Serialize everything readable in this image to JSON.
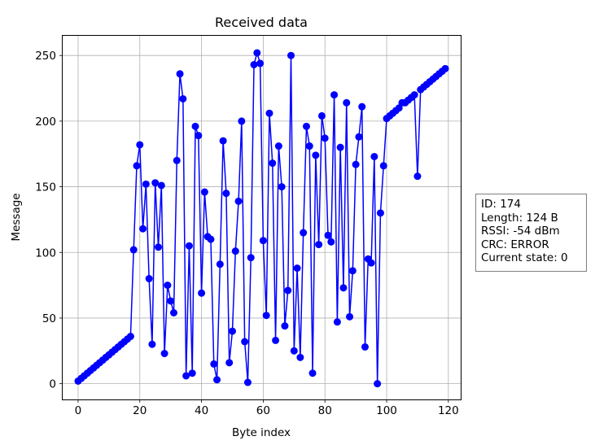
{
  "chart_data": {
    "type": "line",
    "title": "Received data",
    "xlabel": "Byte index",
    "ylabel": "Message",
    "xlim": [
      -5,
      124
    ],
    "ylim": [
      -12,
      265
    ],
    "xticks": [
      0,
      20,
      40,
      60,
      80,
      100,
      120
    ],
    "yticks": [
      0,
      50,
      100,
      150,
      200,
      250
    ],
    "grid": true,
    "marker": "circle",
    "line_color": "#0000ff",
    "marker_color": "#0000ff",
    "series": [
      {
        "x": [
          0,
          1,
          2,
          3,
          4,
          5,
          6,
          7,
          8,
          9,
          10,
          11,
          12,
          13,
          14,
          15,
          16,
          17,
          18,
          19,
          20,
          21,
          22,
          23,
          24,
          25,
          26,
          27,
          28,
          29,
          30,
          31,
          32,
          33,
          34,
          35,
          36,
          37,
          38,
          39,
          40,
          41,
          42,
          43,
          44,
          45,
          46,
          47,
          48,
          49,
          50,
          51,
          52,
          53,
          54,
          55,
          56,
          57,
          58,
          59,
          60,
          61,
          62,
          63,
          64,
          65,
          66,
          67,
          68,
          69,
          70,
          71,
          72,
          73,
          74,
          75,
          76,
          77,
          78,
          79,
          80,
          81,
          82,
          83,
          84,
          85,
          86,
          87,
          88,
          89,
          90,
          91,
          92,
          93,
          94,
          95,
          96,
          97,
          98,
          99,
          100,
          101,
          102,
          103,
          104,
          105,
          106,
          107,
          108,
          109,
          110,
          111,
          112,
          113,
          114,
          115,
          116,
          117,
          118,
          119
        ],
        "values": [
          2,
          4,
          6,
          8,
          10,
          12,
          14,
          16,
          18,
          20,
          22,
          24,
          26,
          28,
          30,
          32,
          34,
          36,
          102,
          166,
          182,
          118,
          152,
          80,
          30,
          153,
          104,
          151,
          23,
          75,
          63,
          54,
          170,
          236,
          217,
          6,
          105,
          8,
          196,
          189,
          69,
          146,
          112,
          110,
          15,
          3,
          91,
          185,
          145,
          16,
          40,
          101,
          139,
          200,
          32,
          1,
          96,
          243,
          252,
          244,
          109,
          52,
          206,
          168,
          33,
          181,
          150,
          44,
          71,
          250,
          25,
          88,
          20,
          115,
          196,
          181,
          8,
          174,
          106,
          204,
          187,
          113,
          108,
          220,
          47,
          180,
          73,
          214,
          51,
          86,
          167,
          188,
          211,
          28,
          95,
          92,
          173,
          0,
          130,
          166,
          202,
          204,
          206,
          208,
          210,
          214,
          214,
          216,
          218,
          220,
          158,
          224,
          226,
          228,
          230,
          232,
          234,
          236,
          238,
          240
        ]
      }
    ]
  },
  "info": {
    "id": "ID: 174",
    "length": "Length: 124 B",
    "rssi": "RSSI: -54 dBm",
    "crc": "CRC: ERROR",
    "state": "Current state: 0"
  }
}
